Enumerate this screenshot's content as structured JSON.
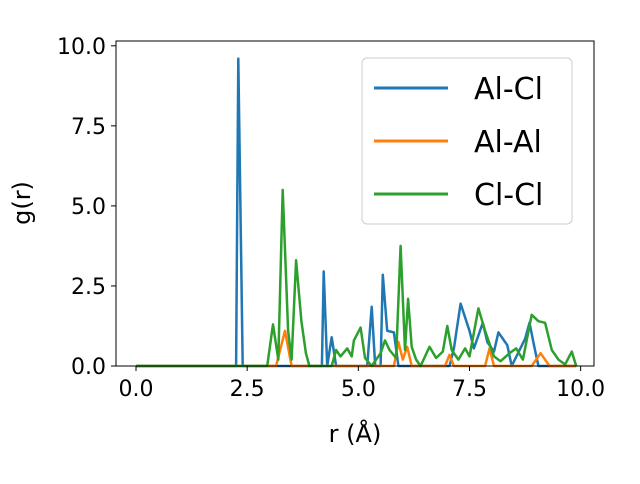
{
  "chart_data": {
    "type": "line",
    "xlabel": "r (Å)",
    "ylabel": "g(r)",
    "xlim": [
      -0.45,
      10.3
    ],
    "ylim": [
      0,
      10.15
    ],
    "xticks": [
      0.0,
      2.5,
      5.0,
      7.5,
      10.0
    ],
    "xtick_labels": [
      "0.0",
      "2.5",
      "5.0",
      "7.5",
      "10.0"
    ],
    "yticks": [
      0.0,
      2.5,
      5.0,
      7.5,
      10.0
    ],
    "ytick_labels": [
      "0.0",
      "2.5",
      "5.0",
      "7.5",
      "10.0"
    ],
    "grid": false,
    "legend_position": "top-right",
    "series": [
      {
        "name": "Al-Cl",
        "color": "#1f77b4",
        "points": [
          [
            0.0,
            0
          ],
          [
            2.15,
            0
          ],
          [
            2.25,
            0
          ],
          [
            2.3,
            9.6
          ],
          [
            2.4,
            0
          ],
          [
            4.1,
            0
          ],
          [
            4.18,
            0
          ],
          [
            4.22,
            2.95
          ],
          [
            4.3,
            0
          ],
          [
            4.4,
            0.9
          ],
          [
            4.5,
            0
          ],
          [
            5.2,
            0
          ],
          [
            5.3,
            1.85
          ],
          [
            5.38,
            0
          ],
          [
            5.5,
            0
          ],
          [
            5.55,
            2.85
          ],
          [
            5.65,
            1.1
          ],
          [
            5.8,
            1.05
          ],
          [
            5.9,
            0
          ],
          [
            7.05,
            0
          ],
          [
            7.15,
            0.55
          ],
          [
            7.3,
            1.95
          ],
          [
            7.5,
            1.1
          ],
          [
            7.6,
            0.55
          ],
          [
            7.8,
            1.35
          ],
          [
            7.9,
            0.75
          ],
          [
            8.05,
            0.45
          ],
          [
            8.15,
            1.05
          ],
          [
            8.35,
            0.65
          ],
          [
            8.45,
            0
          ],
          [
            8.75,
            0.85
          ],
          [
            8.85,
            1.35
          ],
          [
            8.95,
            0.65
          ],
          [
            9.05,
            0
          ],
          [
            9.9,
            0
          ]
        ]
      },
      {
        "name": "Al-Al",
        "color": "#ff7f0e",
        "points": [
          [
            0.0,
            0
          ],
          [
            3.15,
            0
          ],
          [
            3.35,
            1.1
          ],
          [
            3.5,
            0
          ],
          [
            5.8,
            0
          ],
          [
            5.9,
            0.75
          ],
          [
            6.0,
            0.2
          ],
          [
            6.1,
            0.6
          ],
          [
            6.2,
            0
          ],
          [
            6.95,
            0
          ],
          [
            7.05,
            0.35
          ],
          [
            7.15,
            0
          ],
          [
            7.85,
            0
          ],
          [
            7.95,
            0.55
          ],
          [
            8.05,
            0
          ],
          [
            8.9,
            0
          ],
          [
            9.1,
            0.4
          ],
          [
            9.3,
            0
          ],
          [
            9.9,
            0
          ]
        ]
      },
      {
        "name": "Cl-Cl",
        "color": "#2ca02c",
        "points": [
          [
            0.0,
            0
          ],
          [
            2.95,
            0
          ],
          [
            3.08,
            1.3
          ],
          [
            3.2,
            0.2
          ],
          [
            3.3,
            5.5
          ],
          [
            3.42,
            1.1
          ],
          [
            3.5,
            0.2
          ],
          [
            3.6,
            3.3
          ],
          [
            3.72,
            1.4
          ],
          [
            3.82,
            0.4
          ],
          [
            3.9,
            0
          ],
          [
            4.4,
            0
          ],
          [
            4.5,
            0.5
          ],
          [
            4.6,
            0.3
          ],
          [
            4.75,
            0.55
          ],
          [
            4.85,
            0.3
          ],
          [
            4.9,
            0.8
          ],
          [
            5.05,
            1.2
          ],
          [
            5.15,
            0.25
          ],
          [
            5.3,
            0
          ],
          [
            5.5,
            0.4
          ],
          [
            5.6,
            0.8
          ],
          [
            5.7,
            0.5
          ],
          [
            5.85,
            0.25
          ],
          [
            5.95,
            3.75
          ],
          [
            6.05,
            0.5
          ],
          [
            6.12,
            2.1
          ],
          [
            6.2,
            0.6
          ],
          [
            6.3,
            0.2
          ],
          [
            6.4,
            0
          ],
          [
            6.6,
            0.6
          ],
          [
            6.75,
            0.25
          ],
          [
            6.9,
            0.45
          ],
          [
            7.0,
            1.25
          ],
          [
            7.1,
            0.5
          ],
          [
            7.25,
            0.2
          ],
          [
            7.4,
            0.55
          ],
          [
            7.5,
            0.3
          ],
          [
            7.7,
            1.8
          ],
          [
            7.85,
            1.1
          ],
          [
            7.95,
            0.7
          ],
          [
            8.05,
            0.3
          ],
          [
            8.2,
            0.15
          ],
          [
            8.4,
            0.4
          ],
          [
            8.55,
            0.55
          ],
          [
            8.7,
            0.2
          ],
          [
            8.9,
            1.6
          ],
          [
            9.05,
            1.4
          ],
          [
            9.2,
            1.35
          ],
          [
            9.35,
            0.5
          ],
          [
            9.5,
            0.2
          ],
          [
            9.65,
            0.05
          ],
          [
            9.8,
            0.45
          ],
          [
            9.9,
            0
          ]
        ]
      }
    ]
  }
}
